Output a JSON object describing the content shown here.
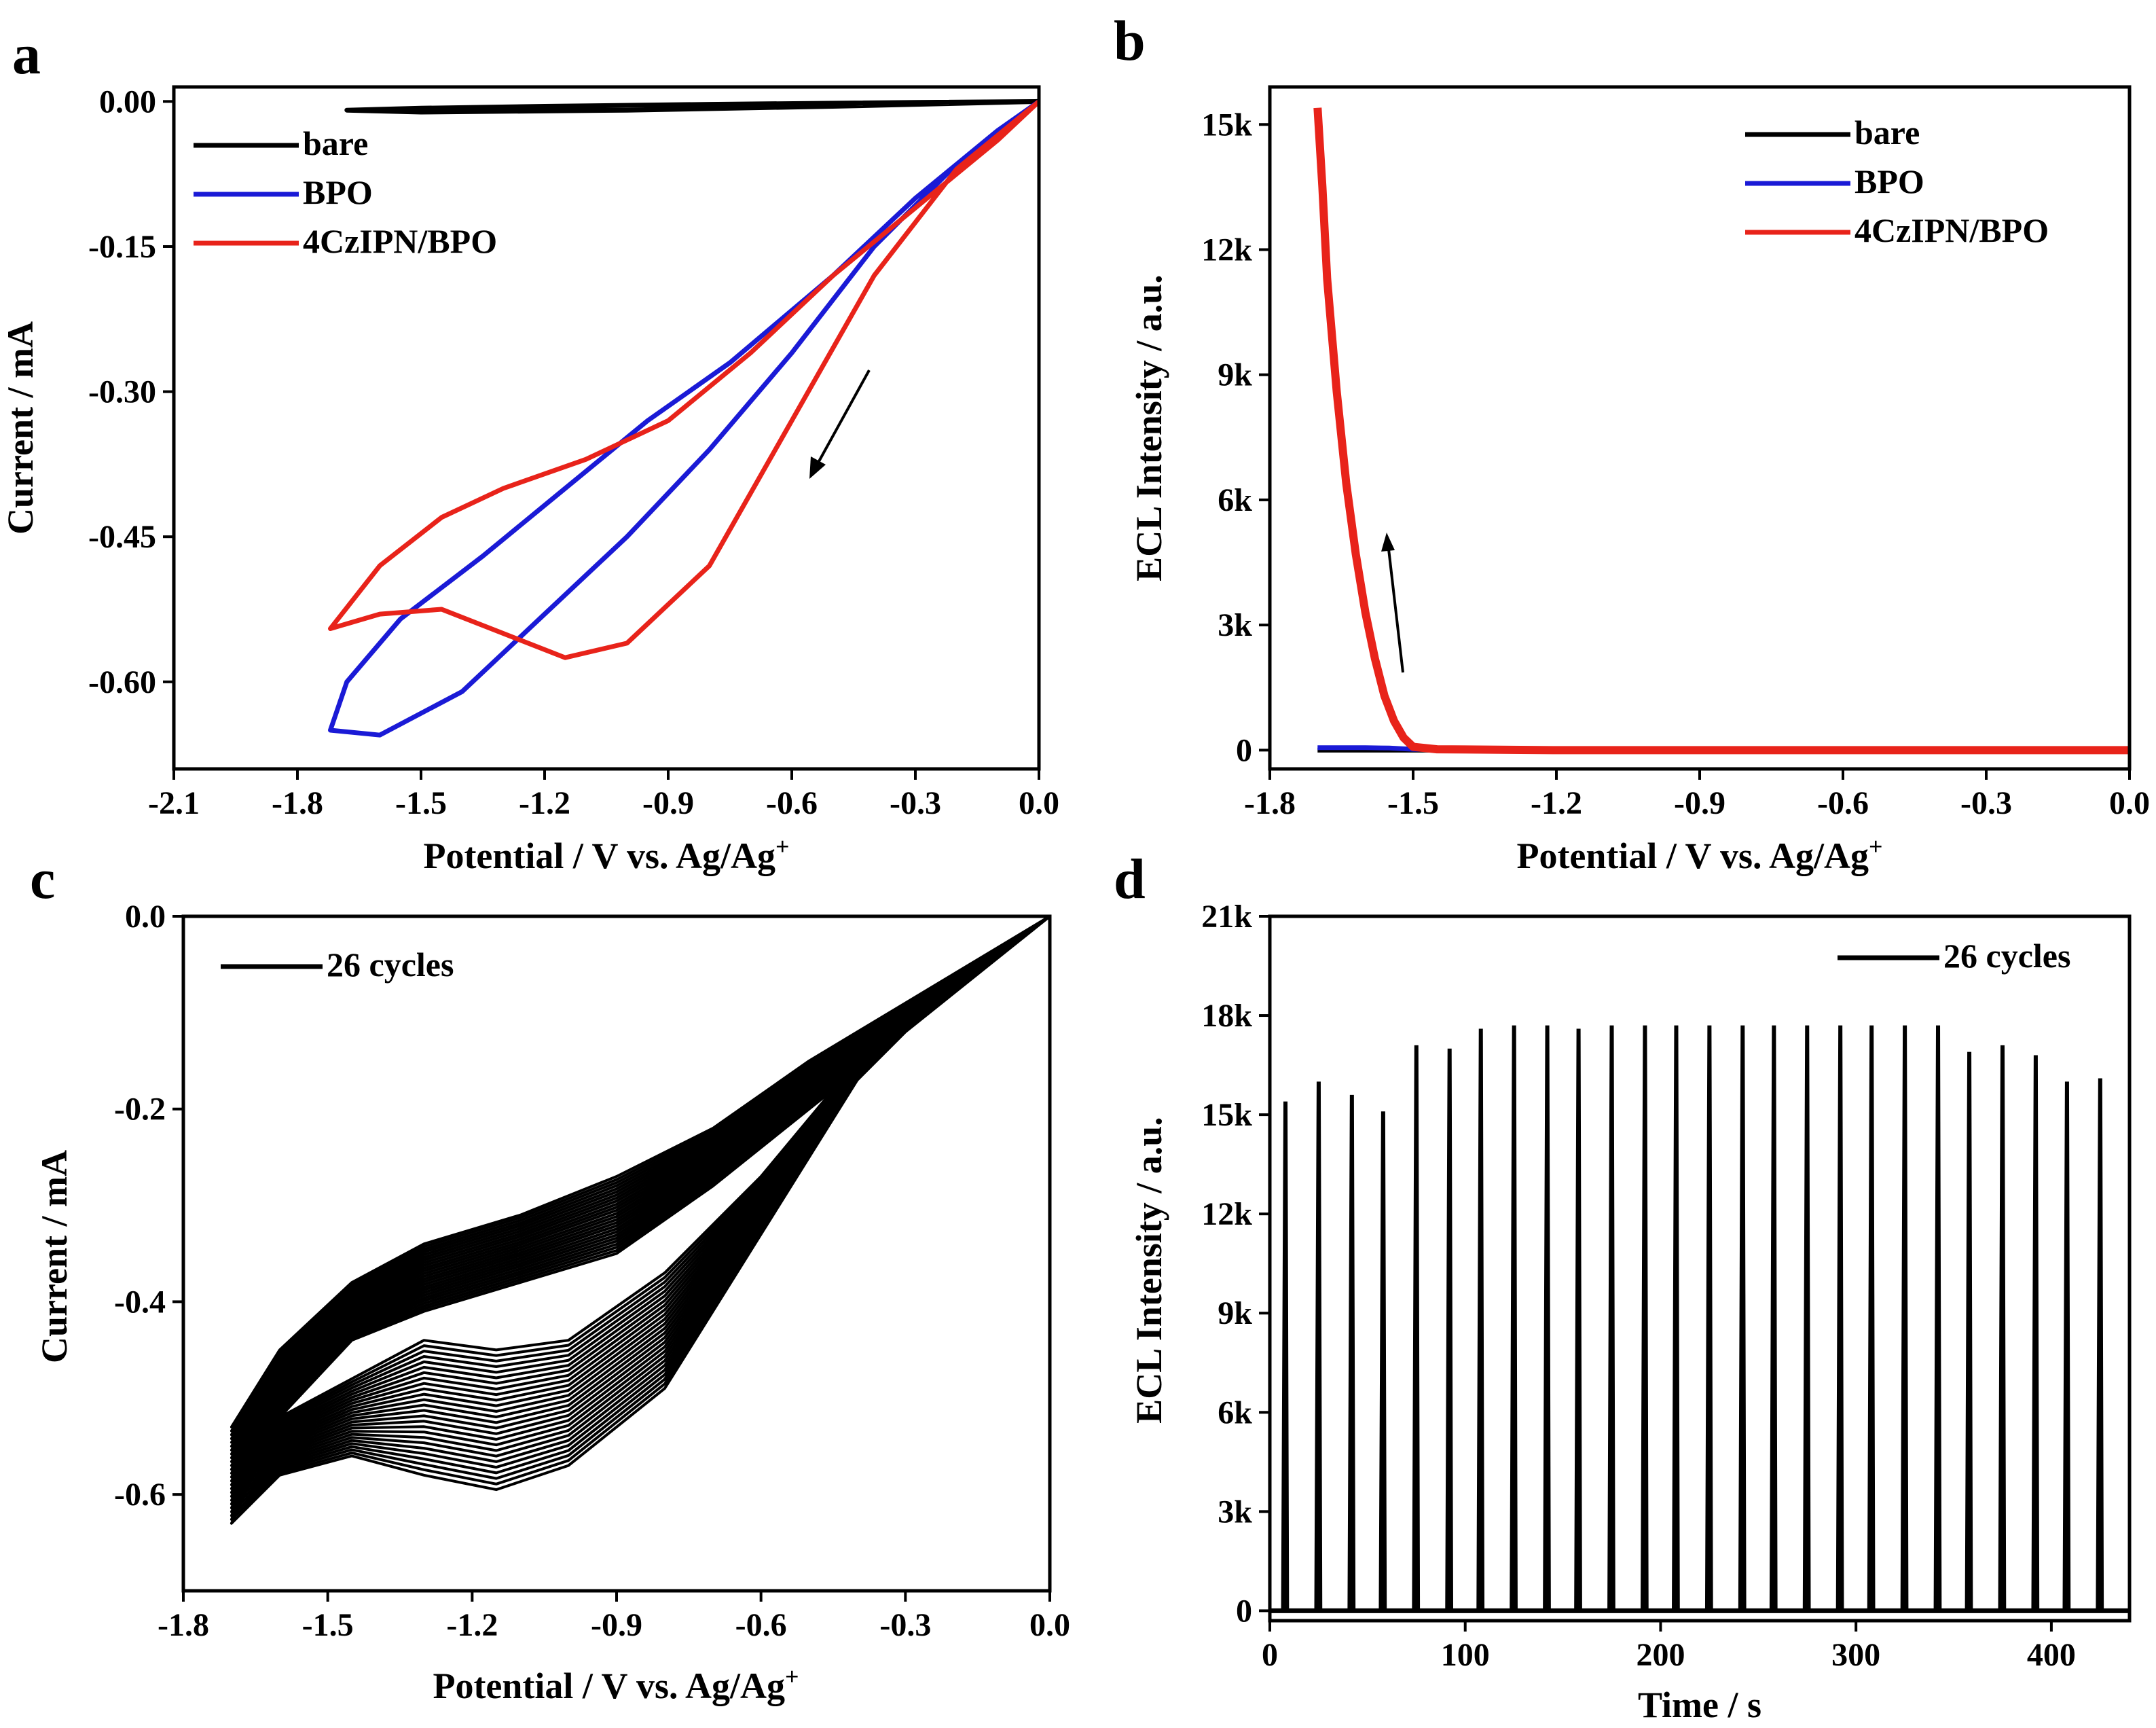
{
  "figure": {
    "panels": [
      {
        "id": "a",
        "label": "a",
        "chart_data": {
          "type": "line",
          "title": "",
          "xlabel": "Potential / V vs. Ag/Ag",
          "xlabel_sup": "+",
          "ylabel": "Current / mA",
          "xlim": [
            -2.1,
            0.0
          ],
          "ylim": [
            -0.69,
            0.015
          ],
          "xticks": [
            -2.1,
            -1.8,
            -1.5,
            -1.2,
            -0.9,
            -0.6,
            -0.3,
            0.0
          ],
          "xtick_labels": [
            "-2.1",
            "-1.8",
            "-1.5",
            "-1.2",
            "-0.9",
            "-0.6",
            "-0.3",
            "0.0"
          ],
          "yticks": [
            0.0,
            -0.15,
            -0.3,
            -0.45,
            -0.6
          ],
          "ytick_labels": [
            "0.00",
            "-0.15",
            "-0.30",
            "-0.45",
            "-0.60"
          ],
          "legend_position": "top-left",
          "annotation": "arrow pointing toward negative potential (forward scan)",
          "series": [
            {
              "name": "bare",
              "color": "#000000",
              "x": [
                0.0,
                -0.3,
                -0.8,
                -1.2,
                -1.5,
                -1.68,
                -1.5,
                -1.0,
                -0.5,
                0.0
              ],
              "y": [
                0.0,
                -0.001,
                -0.003,
                -0.005,
                -0.007,
                -0.009,
                -0.011,
                -0.009,
                -0.005,
                0.0
              ]
            },
            {
              "name": "BPO",
              "color": "#1a1ad6",
              "x": [
                0.0,
                -0.2,
                -0.4,
                -0.6,
                -0.8,
                -1.0,
                -1.2,
                -1.4,
                -1.6,
                -1.72,
                -1.68,
                -1.55,
                -1.35,
                -1.15,
                -0.95,
                -0.75,
                -0.5,
                -0.3,
                -0.1,
                0.0
              ],
              "y": [
                0.0,
                -0.065,
                -0.15,
                -0.26,
                -0.36,
                -0.45,
                -0.53,
                -0.61,
                -0.655,
                -0.65,
                -0.6,
                -0.535,
                -0.47,
                -0.4,
                -0.33,
                -0.27,
                -0.18,
                -0.1,
                -0.03,
                0.0
              ]
            },
            {
              "name": "4CzIPN/BPO",
              "color": "#e8231a",
              "x": [
                0.0,
                -0.2,
                -0.4,
                -0.6,
                -0.8,
                -1.0,
                -1.15,
                -1.3,
                -1.45,
                -1.6,
                -1.72,
                -1.6,
                -1.45,
                -1.3,
                -1.1,
                -0.9,
                -0.7,
                -0.5,
                -0.3,
                -0.1,
                0.0
              ],
              "y": [
                0.0,
                -0.07,
                -0.18,
                -0.33,
                -0.48,
                -0.56,
                -0.575,
                -0.55,
                -0.525,
                -0.53,
                -0.545,
                -0.48,
                -0.43,
                -0.4,
                -0.37,
                -0.33,
                -0.26,
                -0.18,
                -0.11,
                -0.04,
                0.0
              ]
            }
          ]
        }
      },
      {
        "id": "b",
        "label": "b",
        "chart_data": {
          "type": "line",
          "title": "",
          "xlabel": "Potential / V vs. Ag/Ag",
          "xlabel_sup": "+",
          "ylabel": "ECL Intensity / a.u.",
          "xlim": [
            -1.8,
            0.0
          ],
          "ylim": [
            -450,
            15900
          ],
          "xticks": [
            -1.8,
            -1.5,
            -1.2,
            -0.9,
            -0.6,
            -0.3,
            0.0
          ],
          "xtick_labels": [
            "-1.8",
            "-1.5",
            "-1.2",
            "-0.9",
            "-0.6",
            "-0.3",
            "0.0"
          ],
          "yticks": [
            0,
            3000,
            6000,
            9000,
            12000,
            15000
          ],
          "ytick_labels": [
            "0",
            "3k",
            "6k",
            "9k",
            "12k",
            "15k"
          ],
          "legend_position": "top-right",
          "annotation": "arrow pointing upward along the ECL rise",
          "series": [
            {
              "name": "bare",
              "color": "#000000",
              "x": [
                -1.7,
                -1.2,
                -0.6,
                0.0
              ],
              "y": [
                0,
                0,
                0,
                0
              ]
            },
            {
              "name": "BPO",
              "color": "#1a1ad6",
              "x": [
                -1.7,
                -1.6,
                -1.55,
                -1.5,
                -1.2,
                0.0
              ],
              "y": [
                60,
                60,
                50,
                20,
                0,
                0
              ]
            },
            {
              "name": "4CzIPN/BPO",
              "color": "#e8231a",
              "x": [
                -1.7,
                -1.69,
                -1.68,
                -1.66,
                -1.64,
                -1.62,
                -1.6,
                -1.58,
                -1.56,
                -1.54,
                -1.52,
                -1.5,
                -1.45,
                -1.2,
                -0.6,
                0.0
              ],
              "y": [
                15400,
                13500,
                11300,
                8600,
                6400,
                4700,
                3300,
                2200,
                1300,
                700,
                300,
                80,
                20,
                0,
                0,
                0
              ]
            }
          ]
        }
      },
      {
        "id": "c",
        "label": "c",
        "chart_data": {
          "type": "line",
          "title": "",
          "xlabel": "Potential / V vs. Ag/Ag",
          "xlabel_sup": "+",
          "ylabel": "Current / mA",
          "xlim": [
            -1.8,
            0.0
          ],
          "ylim": [
            -0.7,
            0.0
          ],
          "xticks": [
            -1.8,
            -1.5,
            -1.2,
            -0.9,
            -0.6,
            -0.3,
            0.0
          ],
          "xtick_labels": [
            "-1.8",
            "-1.5",
            "-1.2",
            "-0.9",
            "-0.6",
            "-0.3",
            "0.0"
          ],
          "yticks": [
            0.0,
            -0.2,
            -0.4,
            -0.6
          ],
          "ytick_labels": [
            "0.0",
            "-0.2",
            "-0.4",
            "-0.6"
          ],
          "legend_position": "top-left",
          "cycles": 26,
          "series": [
            {
              "name": "26 cycles",
              "color": "#000000",
              "x_forward": [
                0.0,
                -0.2,
                -0.4,
                -0.6,
                -0.8,
                -1.0,
                -1.15,
                -1.3,
                -1.45,
                -1.6,
                -1.7
              ],
              "y_forward_first": [
                0.0,
                -0.07,
                -0.17,
                -0.33,
                -0.49,
                -0.57,
                -0.595,
                -0.58,
                -0.56,
                -0.58,
                -0.63
              ],
              "y_forward_last": [
                0.0,
                -0.06,
                -0.15,
                -0.27,
                -0.37,
                -0.44,
                -0.45,
                -0.44,
                -0.48,
                -0.52,
                -0.53
              ],
              "x_reverse": [
                -1.7,
                -1.6,
                -1.45,
                -1.3,
                -1.1,
                -0.9,
                -0.7,
                -0.5,
                -0.3,
                -0.1,
                0.0
              ],
              "y_reverse_first": [
                -0.63,
                -0.52,
                -0.44,
                -0.41,
                -0.38,
                -0.35,
                -0.28,
                -0.2,
                -0.12,
                -0.04,
                0.0
              ],
              "y_reverse_last": [
                -0.53,
                -0.45,
                -0.38,
                -0.34,
                -0.31,
                -0.27,
                -0.22,
                -0.15,
                -0.09,
                -0.03,
                0.0
              ]
            }
          ]
        }
      },
      {
        "id": "d",
        "label": "d",
        "chart_data": {
          "type": "line",
          "title": "",
          "xlabel": "Time / s",
          "ylabel": "ECL Intensity / a.u.",
          "xlim": [
            0,
            440
          ],
          "ylim": [
            -300,
            21000
          ],
          "xticks": [
            0,
            100,
            200,
            300,
            400
          ],
          "xtick_labels": [
            "0",
            "100",
            "200",
            "300",
            "400"
          ],
          "yticks": [
            0,
            3000,
            6000,
            9000,
            12000,
            15000,
            18000,
            21000
          ],
          "ytick_labels": [
            "0",
            "3k",
            "6k",
            "9k",
            "12k",
            "15k",
            "18k",
            "21k"
          ],
          "legend_position": "top-right",
          "series": [
            {
              "name": "26 cycles",
              "color": "#000000",
              "peak_times": [
                8,
                25,
                42,
                58,
                75,
                92,
                108,
                125,
                142,
                158,
                175,
                192,
                208,
                225,
                242,
                258,
                275,
                292,
                308,
                325,
                342,
                358,
                375,
                392,
                408,
                425
              ],
              "peak_values": [
                15400,
                16000,
                15600,
                15100,
                17100,
                17000,
                17600,
                17700,
                17700,
                17600,
                17700,
                17700,
                17700,
                17700,
                17700,
                17700,
                17700,
                17700,
                17700,
                17700,
                17700,
                16900,
                17100,
                16800,
                16000,
                16100
              ]
            }
          ]
        }
      }
    ]
  }
}
